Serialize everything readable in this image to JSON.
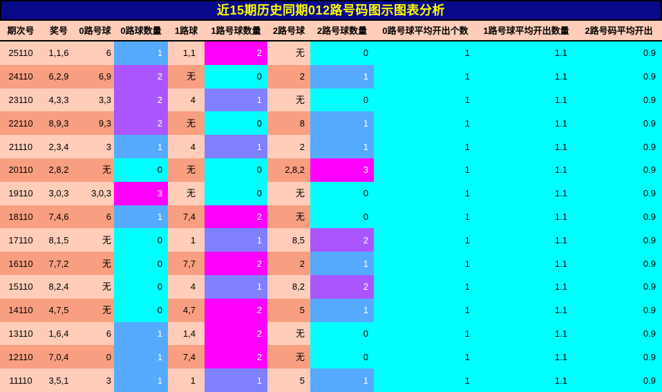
{
  "title": "近15期历史同期012路号码图示图表分析",
  "colors": {
    "title_bg": "#08088B",
    "title_text": "#FFFF00",
    "border_black": "#000000",
    "header_bg": "#FFCDB9",
    "row_light": "#FFCDB9",
    "row_dark": "#F99F81",
    "avg_bg": "#00FFFF",
    "count_0": "#00FFFF",
    "count_1_of_3": "#55AAFF",
    "count_2_of_3": "#AA55FF",
    "count_1_of_2": "#8080FF",
    "count_max": "#FF00FF",
    "count_text_nonzero": "#FFFFFF",
    "count_text_zero": "#000000"
  },
  "table": {
    "columns": [
      "期次号",
      "奖号",
      "0路号球",
      "0路球数量",
      "1路球",
      "1路号球数量",
      "2路号球",
      "2路号球数量",
      "0路号球平均开出个数",
      "1路号球平均开出数量",
      "2路号码平均开出"
    ],
    "avg_bg": "#00FFFF",
    "rows": [
      {
        "period": "25110",
        "prize": "1,1,6",
        "r0_balls": "6",
        "r0_count": {
          "value": "1",
          "bg": "#55AAFF",
          "fg": "#FFFFFF"
        },
        "r1_balls": "1,1",
        "r1_count": {
          "value": "2",
          "bg": "#FF00FF",
          "fg": "#FFFFFF"
        },
        "r2_balls": "无",
        "r2_count": {
          "value": "0",
          "bg": "#00FFFF",
          "fg": "#000000"
        },
        "avg0": "1",
        "avg1": "1.1",
        "avg2": "0.9"
      },
      {
        "period": "24110",
        "prize": "6,2,9",
        "r0_balls": "6,9",
        "r0_count": {
          "value": "2",
          "bg": "#AA55FF",
          "fg": "#FFFFFF"
        },
        "r1_balls": "无",
        "r1_count": {
          "value": "0",
          "bg": "#00FFFF",
          "fg": "#000000"
        },
        "r2_balls": "2",
        "r2_count": {
          "value": "1",
          "bg": "#55AAFF",
          "fg": "#FFFFFF"
        },
        "avg0": "1",
        "avg1": "1.1",
        "avg2": "0.9"
      },
      {
        "period": "23110",
        "prize": "4,3,3",
        "r0_balls": "3,3",
        "r0_count": {
          "value": "2",
          "bg": "#AA55FF",
          "fg": "#FFFFFF"
        },
        "r1_balls": "4",
        "r1_count": {
          "value": "1",
          "bg": "#8080FF",
          "fg": "#FFFFFF"
        },
        "r2_balls": "无",
        "r2_count": {
          "value": "0",
          "bg": "#00FFFF",
          "fg": "#000000"
        },
        "avg0": "1",
        "avg1": "1.1",
        "avg2": "0.9"
      },
      {
        "period": "22110",
        "prize": "8,9,3",
        "r0_balls": "9,3",
        "r0_count": {
          "value": "2",
          "bg": "#AA55FF",
          "fg": "#FFFFFF"
        },
        "r1_balls": "无",
        "r1_count": {
          "value": "0",
          "bg": "#00FFFF",
          "fg": "#000000"
        },
        "r2_balls": "8",
        "r2_count": {
          "value": "1",
          "bg": "#55AAFF",
          "fg": "#FFFFFF"
        },
        "avg0": "1",
        "avg1": "1.1",
        "avg2": "0.9"
      },
      {
        "period": "21110",
        "prize": "2,3,4",
        "r0_balls": "3",
        "r0_count": {
          "value": "1",
          "bg": "#55AAFF",
          "fg": "#FFFFFF"
        },
        "r1_balls": "4",
        "r1_count": {
          "value": "1",
          "bg": "#8080FF",
          "fg": "#FFFFFF"
        },
        "r2_balls": "2",
        "r2_count": {
          "value": "1",
          "bg": "#55AAFF",
          "fg": "#FFFFFF"
        },
        "avg0": "1",
        "avg1": "1.1",
        "avg2": "0.9"
      },
      {
        "period": "20110",
        "prize": "2,8,2",
        "r0_balls": "无",
        "r0_count": {
          "value": "0",
          "bg": "#00FFFF",
          "fg": "#000000"
        },
        "r1_balls": "无",
        "r1_count": {
          "value": "0",
          "bg": "#00FFFF",
          "fg": "#000000"
        },
        "r2_balls": "2,8,2",
        "r2_count": {
          "value": "3",
          "bg": "#FF00FF",
          "fg": "#FFFFFF"
        },
        "avg0": "1",
        "avg1": "1.1",
        "avg2": "0.9"
      },
      {
        "period": "19110",
        "prize": "3,0,3",
        "r0_balls": "3,0,3",
        "r0_count": {
          "value": "3",
          "bg": "#FF00FF",
          "fg": "#FFFFFF"
        },
        "r1_balls": "无",
        "r1_count": {
          "value": "0",
          "bg": "#00FFFF",
          "fg": "#000000"
        },
        "r2_balls": "无",
        "r2_count": {
          "value": "0",
          "bg": "#00FFFF",
          "fg": "#000000"
        },
        "avg0": "1",
        "avg1": "1.1",
        "avg2": "0.9"
      },
      {
        "period": "18110",
        "prize": "7,4,6",
        "r0_balls": "6",
        "r0_count": {
          "value": "1",
          "bg": "#55AAFF",
          "fg": "#FFFFFF"
        },
        "r1_balls": "7,4",
        "r1_count": {
          "value": "2",
          "bg": "#FF00FF",
          "fg": "#FFFFFF"
        },
        "r2_balls": "无",
        "r2_count": {
          "value": "0",
          "bg": "#00FFFF",
          "fg": "#000000"
        },
        "avg0": "1",
        "avg1": "1.1",
        "avg2": "0.9"
      },
      {
        "period": "17110",
        "prize": "8,1,5",
        "r0_balls": "无",
        "r0_count": {
          "value": "0",
          "bg": "#00FFFF",
          "fg": "#000000"
        },
        "r1_balls": "1",
        "r1_count": {
          "value": "1",
          "bg": "#8080FF",
          "fg": "#FFFFFF"
        },
        "r2_balls": "8,5",
        "r2_count": {
          "value": "2",
          "bg": "#AA55FF",
          "fg": "#FFFFFF"
        },
        "avg0": "1",
        "avg1": "1.1",
        "avg2": "0.9"
      },
      {
        "period": "16110",
        "prize": "7,7,2",
        "r0_balls": "无",
        "r0_count": {
          "value": "0",
          "bg": "#00FFFF",
          "fg": "#000000"
        },
        "r1_balls": "7,7",
        "r1_count": {
          "value": "2",
          "bg": "#FF00FF",
          "fg": "#FFFFFF"
        },
        "r2_balls": "2",
        "r2_count": {
          "value": "1",
          "bg": "#55AAFF",
          "fg": "#FFFFFF"
        },
        "avg0": "1",
        "avg1": "1.1",
        "avg2": "0.9"
      },
      {
        "period": "15110",
        "prize": "8,2,4",
        "r0_balls": "无",
        "r0_count": {
          "value": "0",
          "bg": "#00FFFF",
          "fg": "#000000"
        },
        "r1_balls": "4",
        "r1_count": {
          "value": "1",
          "bg": "#8080FF",
          "fg": "#FFFFFF"
        },
        "r2_balls": "8,2",
        "r2_count": {
          "value": "2",
          "bg": "#AA55FF",
          "fg": "#FFFFFF"
        },
        "avg0": "1",
        "avg1": "1.1",
        "avg2": "0.9"
      },
      {
        "period": "14110",
        "prize": "4,7,5",
        "r0_balls": "无",
        "r0_count": {
          "value": "0",
          "bg": "#00FFFF",
          "fg": "#000000"
        },
        "r1_balls": "4,7",
        "r1_count": {
          "value": "2",
          "bg": "#FF00FF",
          "fg": "#FFFFFF"
        },
        "r2_balls": "5",
        "r2_count": {
          "value": "1",
          "bg": "#55AAFF",
          "fg": "#FFFFFF"
        },
        "avg0": "1",
        "avg1": "1.1",
        "avg2": "0.9"
      },
      {
        "period": "13110",
        "prize": "1,6,4",
        "r0_balls": "6",
        "r0_count": {
          "value": "1",
          "bg": "#55AAFF",
          "fg": "#FFFFFF"
        },
        "r1_balls": "1,4",
        "r1_count": {
          "value": "2",
          "bg": "#FF00FF",
          "fg": "#FFFFFF"
        },
        "r2_balls": "无",
        "r2_count": {
          "value": "0",
          "bg": "#00FFFF",
          "fg": "#000000"
        },
        "avg0": "1",
        "avg1": "1.1",
        "avg2": "0.9"
      },
      {
        "period": "12110",
        "prize": "7,0,4",
        "r0_balls": "0",
        "r0_count": {
          "value": "1",
          "bg": "#55AAFF",
          "fg": "#FFFFFF"
        },
        "r1_balls": "7,4",
        "r1_count": {
          "value": "2",
          "bg": "#FF00FF",
          "fg": "#FFFFFF"
        },
        "r2_balls": "无",
        "r2_count": {
          "value": "0",
          "bg": "#00FFFF",
          "fg": "#000000"
        },
        "avg0": "1",
        "avg1": "1.1",
        "avg2": "0.9"
      },
      {
        "period": "11110",
        "prize": "3,5,1",
        "r0_balls": "3",
        "r0_count": {
          "value": "1",
          "bg": "#55AAFF",
          "fg": "#FFFFFF"
        },
        "r1_balls": "1",
        "r1_count": {
          "value": "1",
          "bg": "#8080FF",
          "fg": "#FFFFFF"
        },
        "r2_balls": "5",
        "r2_count": {
          "value": "1",
          "bg": "#55AAFF",
          "fg": "#FFFFFF"
        },
        "avg0": "1",
        "avg1": "1.1",
        "avg2": "0.9"
      }
    ]
  },
  "chart_data": {
    "type": "table",
    "title": "近15期历史同期012路号码图示图表分析",
    "columns": [
      "期次号",
      "奖号",
      "0路号球",
      "0路球数量",
      "1路球",
      "1路号球数量",
      "2路号球",
      "2路号球数量",
      "0路号球平均开出个数",
      "1路号球平均开出数量",
      "2路号码平均开出"
    ],
    "rows": [
      [
        "25110",
        "1,1,6",
        "6",
        1,
        "1,1",
        2,
        "无",
        0,
        1,
        1.1,
        0.9
      ],
      [
        "24110",
        "6,2,9",
        "6,9",
        2,
        "无",
        0,
        "2",
        1,
        1,
        1.1,
        0.9
      ],
      [
        "23110",
        "4,3,3",
        "3,3",
        2,
        "4",
        1,
        "无",
        0,
        1,
        1.1,
        0.9
      ],
      [
        "22110",
        "8,9,3",
        "9,3",
        2,
        "无",
        0,
        "8",
        1,
        1,
        1.1,
        0.9
      ],
      [
        "21110",
        "2,3,4",
        "3",
        1,
        "4",
        1,
        "2",
        1,
        1,
        1.1,
        0.9
      ],
      [
        "20110",
        "2,8,2",
        "无",
        0,
        "无",
        0,
        "2,8,2",
        3,
        1,
        1.1,
        0.9
      ],
      [
        "19110",
        "3,0,3",
        "3,0,3",
        3,
        "无",
        0,
        "无",
        0,
        1,
        1.1,
        0.9
      ],
      [
        "18110",
        "7,4,6",
        "6",
        1,
        "7,4",
        2,
        "无",
        0,
        1,
        1.1,
        0.9
      ],
      [
        "17110",
        "8,1,5",
        "无",
        0,
        "1",
        1,
        "8,5",
        2,
        1,
        1.1,
        0.9
      ],
      [
        "16110",
        "7,7,2",
        "无",
        0,
        "7,7",
        2,
        "2",
        1,
        1,
        1.1,
        0.9
      ],
      [
        "15110",
        "8,2,4",
        "无",
        0,
        "4",
        1,
        "8,2",
        2,
        1,
        1.1,
        0.9
      ],
      [
        "14110",
        "4,7,5",
        "无",
        0,
        "4,7",
        2,
        "5",
        1,
        1,
        1.1,
        0.9
      ],
      [
        "13110",
        "1,6,4",
        "6",
        1,
        "1,4",
        2,
        "无",
        0,
        1,
        1.1,
        0.9
      ],
      [
        "12110",
        "7,0,4",
        "0",
        1,
        "7,4",
        2,
        "无",
        0,
        1,
        1.1,
        0.9
      ],
      [
        "11110",
        "3,5,1",
        "3",
        1,
        "1",
        1,
        "5",
        1,
        1,
        1.1,
        0.9
      ]
    ],
    "legend": "count cells color scale per column: 0 = #00FFFF (cyan) up to column max = #FF00FF (magenta)",
    "grid": false
  }
}
